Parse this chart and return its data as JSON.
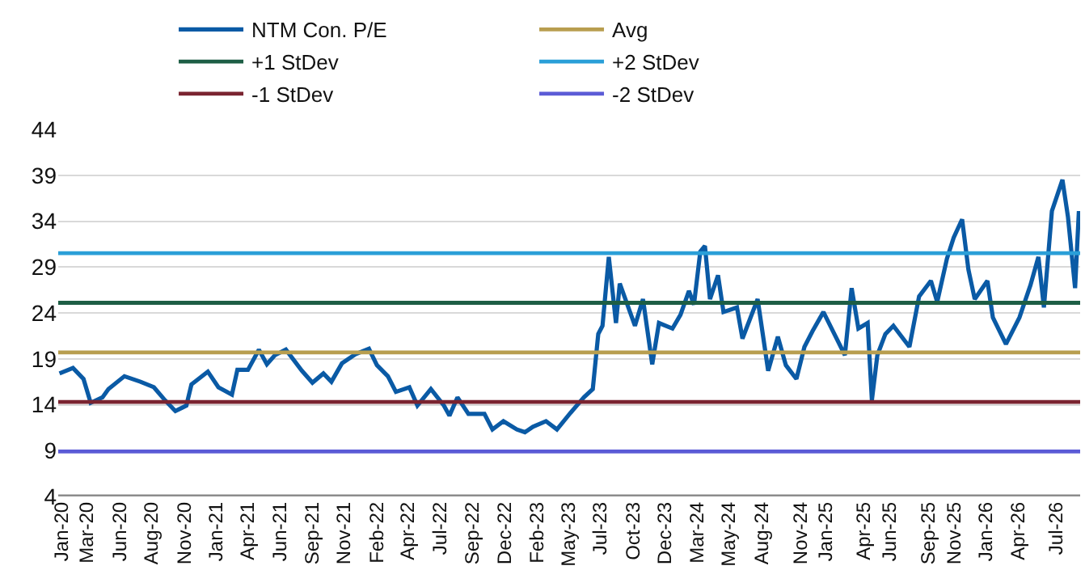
{
  "chart_data": {
    "type": "line",
    "series": [
      {
        "name": "NTM Con. P/E",
        "color": "#0a5aa5",
        "x": [
          "2020-01-10",
          "2020-02-11",
          "2020-03-07",
          "2020-03-24",
          "2020-04-21",
          "2020-05-05",
          "2020-06-12",
          "2020-07-20",
          "2020-08-21",
          "2020-09-16",
          "2020-10-11",
          "2020-11-06",
          "2020-11-18",
          "2020-12-27",
          "2021-01-21",
          "2021-02-22",
          "2021-03-07",
          "2021-04-01",
          "2021-04-27",
          "2021-05-16",
          "2021-06-04",
          "2021-06-30",
          "2021-08-07",
          "2021-09-01",
          "2021-09-27",
          "2021-10-16",
          "2021-11-10",
          "2021-12-12",
          "2022-01-13",
          "2022-02-01",
          "2022-02-27",
          "2022-03-18",
          "2022-04-19",
          "2022-05-08",
          "2022-06-09",
          "2022-07-10",
          "2022-07-23",
          "2022-08-11",
          "2022-09-06",
          "2022-10-14",
          "2022-11-02",
          "2022-11-28",
          "2022-12-30",
          "2023-01-18",
          "2023-02-06",
          "2023-03-09",
          "2023-04-04",
          "2023-05-06",
          "2023-06-07",
          "2023-06-28",
          "2023-07-11",
          "2023-07-21",
          "2023-08-05",
          "2023-08-22",
          "2023-08-31",
          "2023-10-06",
          "2023-10-25",
          "2023-11-16",
          "2023-12-02",
          "2024-01-03",
          "2024-01-22",
          "2024-02-11",
          "2024-02-23",
          "2024-03-09",
          "2024-03-20",
          "2024-04-01",
          "2024-04-20",
          "2024-05-03",
          "2024-06-04",
          "2024-06-17",
          "2024-07-23",
          "2024-08-17",
          "2024-09-09",
          "2024-09-28",
          "2024-10-23",
          "2024-11-11",
          "2024-11-30",
          "2024-12-26",
          "2025-01-21",
          "2025-02-15",
          "2025-03-03",
          "2025-03-19",
          "2025-04-10",
          "2025-04-20",
          "2025-05-03",
          "2025-05-22",
          "2025-06-10",
          "2025-07-18",
          "2025-08-10",
          "2025-09-07",
          "2025-09-22",
          "2025-10-15",
          "2025-10-31",
          "2025-11-20",
          "2025-12-05",
          "2025-12-20",
          "2026-01-19",
          "2026-02-01",
          "2026-03-04",
          "2026-04-05",
          "2026-05-01",
          "2026-05-20",
          "2026-06-02",
          "2026-06-21",
          "2026-07-16",
          "2026-07-29",
          "2026-08-15",
          "2026-08-24"
        ],
        "values": [
          17.4,
          18.0,
          16.8,
          14.2,
          14.8,
          15.7,
          17.1,
          16.5,
          15.9,
          14.5,
          13.3,
          13.9,
          16.2,
          17.6,
          15.9,
          15.1,
          17.8,
          17.8,
          20.0,
          18.4,
          19.4,
          20.0,
          17.7,
          16.4,
          17.4,
          16.5,
          18.5,
          19.5,
          20.1,
          18.3,
          17.1,
          15.4,
          15.9,
          13.9,
          15.7,
          13.9,
          12.8,
          14.8,
          13.0,
          13.0,
          11.3,
          12.2,
          11.3,
          11.0,
          11.6,
          12.2,
          11.3,
          13.1,
          14.8,
          15.7,
          21.7,
          22.6,
          30.1,
          22.9,
          27.2,
          22.6,
          25.5,
          18.4,
          22.9,
          22.3,
          23.8,
          26.4,
          24.9,
          30.7,
          31.3,
          25.5,
          28.1,
          24.1,
          24.6,
          21.2,
          25.5,
          17.7,
          21.4,
          18.3,
          16.8,
          20.3,
          22.0,
          24.1,
          21.7,
          19.4,
          26.7,
          22.3,
          22.9,
          14.5,
          19.4,
          21.7,
          22.6,
          20.3,
          25.8,
          27.5,
          25.2,
          29.9,
          32.2,
          34.2,
          28.7,
          25.5,
          27.5,
          23.5,
          20.6,
          23.5,
          27.0,
          30.1,
          24.6,
          35.1,
          38.5,
          34.5,
          26.7,
          35.1
        ]
      }
    ],
    "ref_lines": [
      {
        "axis": "y",
        "value": 19.7,
        "label": "Avg",
        "color": "#b89e4f"
      },
      {
        "axis": "y",
        "value": 25.1,
        "label": "+1 StDev",
        "color": "#1d5e45"
      },
      {
        "axis": "y",
        "value": 30.5,
        "label": "+2 StDev",
        "color": "#2a9fd8"
      },
      {
        "axis": "y",
        "value": 14.3,
        "label": "-1 StDev",
        "color": "#7a2430"
      },
      {
        "axis": "y",
        "value": 8.9,
        "label": "-2 StDev",
        "color": "#5b5bd6"
      }
    ],
    "xlim": [
      "2020-01-07",
      "2026-08-27"
    ],
    "xticks": [
      {
        "value": "2020-01-15",
        "label": "Jan-20"
      },
      {
        "value": "2020-03-15",
        "label": "Mar-20"
      },
      {
        "value": "2020-06-01",
        "label": "Jun-20"
      },
      {
        "value": "2020-08-15",
        "label": "Aug-20"
      },
      {
        "value": "2020-11-01",
        "label": "Nov-20"
      },
      {
        "value": "2021-01-15",
        "label": "Jan-21"
      },
      {
        "value": "2021-04-01",
        "label": "Apr-21"
      },
      {
        "value": "2021-06-15",
        "label": "Jun-21"
      },
      {
        "value": "2021-09-01",
        "label": "Sep-21"
      },
      {
        "value": "2021-11-15",
        "label": "Nov-21"
      },
      {
        "value": "2022-02-01",
        "label": "Feb-22"
      },
      {
        "value": "2022-04-15",
        "label": "Apr-22"
      },
      {
        "value": "2022-07-01",
        "label": "Jul-22"
      },
      {
        "value": "2022-09-15",
        "label": "Sep-22"
      },
      {
        "value": "2022-12-01",
        "label": "Dec-22"
      },
      {
        "value": "2023-02-15",
        "label": "Feb-23"
      },
      {
        "value": "2023-05-01",
        "label": "May-23"
      },
      {
        "value": "2023-07-15",
        "label": "Jul-23"
      },
      {
        "value": "2023-10-01",
        "label": "Oct-23"
      },
      {
        "value": "2023-12-15",
        "label": "Dec-23"
      },
      {
        "value": "2024-03-01",
        "label": "Mar-24"
      },
      {
        "value": "2024-05-15",
        "label": "May-24"
      },
      {
        "value": "2024-08-01",
        "label": "Aug-24"
      },
      {
        "value": "2024-11-01",
        "label": "Nov-24"
      },
      {
        "value": "2025-01-01",
        "label": "Jan-25"
      },
      {
        "value": "2025-04-01",
        "label": "Apr-25"
      },
      {
        "value": "2025-06-01",
        "label": "Jun-25"
      },
      {
        "value": "2025-09-01",
        "label": "Sep-25"
      },
      {
        "value": "2025-11-01",
        "label": "Nov-25"
      },
      {
        "value": "2026-01-15",
        "label": "Jan-26"
      },
      {
        "value": "2026-04-01",
        "label": "Apr-26"
      },
      {
        "value": "2026-07-01",
        "label": "Jul-26"
      }
    ],
    "ylim": [
      4,
      44
    ],
    "yticks": [
      4,
      9,
      14,
      19,
      24,
      29,
      34,
      39,
      44
    ],
    "grid": "y",
    "legend": "top",
    "line_style": "solid",
    "marker": "none"
  }
}
